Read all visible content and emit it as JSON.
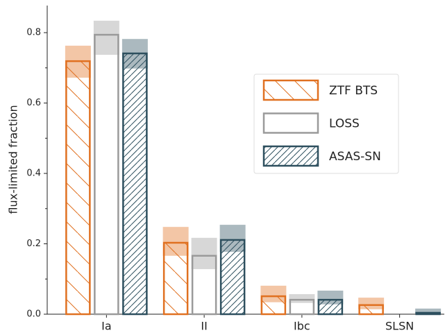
{
  "chart_data": {
    "type": "bar",
    "ylabel": "flux-limited fraction",
    "categories": [
      "Ia",
      "II",
      "Ibc",
      "SLSN"
    ],
    "series": [
      {
        "name": "ZTF BTS",
        "color": "#e07020",
        "hatch": "\\",
        "values": [
          0.719,
          0.203,
          0.051,
          0.026
        ],
        "lower": [
          0.672,
          0.166,
          0.034,
          0.014
        ],
        "upper": [
          0.763,
          0.248,
          0.081,
          0.047
        ]
      },
      {
        "name": "LOSS",
        "color": "#9a9a9a",
        "hatch": "",
        "values": [
          0.794,
          0.166,
          0.041,
          0
        ],
        "lower": [
          0.737,
          0.128,
          0.032,
          null
        ],
        "upper": [
          0.834,
          0.217,
          0.057,
          null
        ]
      },
      {
        "name": "ASAS-SN",
        "color": "#2d4f5e",
        "hatch": "////",
        "values": [
          0.741,
          0.211,
          0.041,
          0.004
        ],
        "lower": [
          0.698,
          0.177,
          0.028,
          0
        ],
        "upper": [
          0.782,
          0.254,
          0.067,
          0.016
        ]
      }
    ],
    "ylim": [
      0,
      0.877
    ],
    "yticks": [
      {
        "value": 0,
        "label": "0.0"
      },
      {
        "value": 0.2,
        "label": "0.2"
      },
      {
        "value": 0.4,
        "label": "0.4"
      },
      {
        "value": 0.6,
        "label": "0.6"
      },
      {
        "value": 0.8,
        "label": "0.8"
      }
    ],
    "yminorticks": [
      0.1,
      0.3,
      0.5,
      0.7
    ],
    "legend": "upper right"
  }
}
